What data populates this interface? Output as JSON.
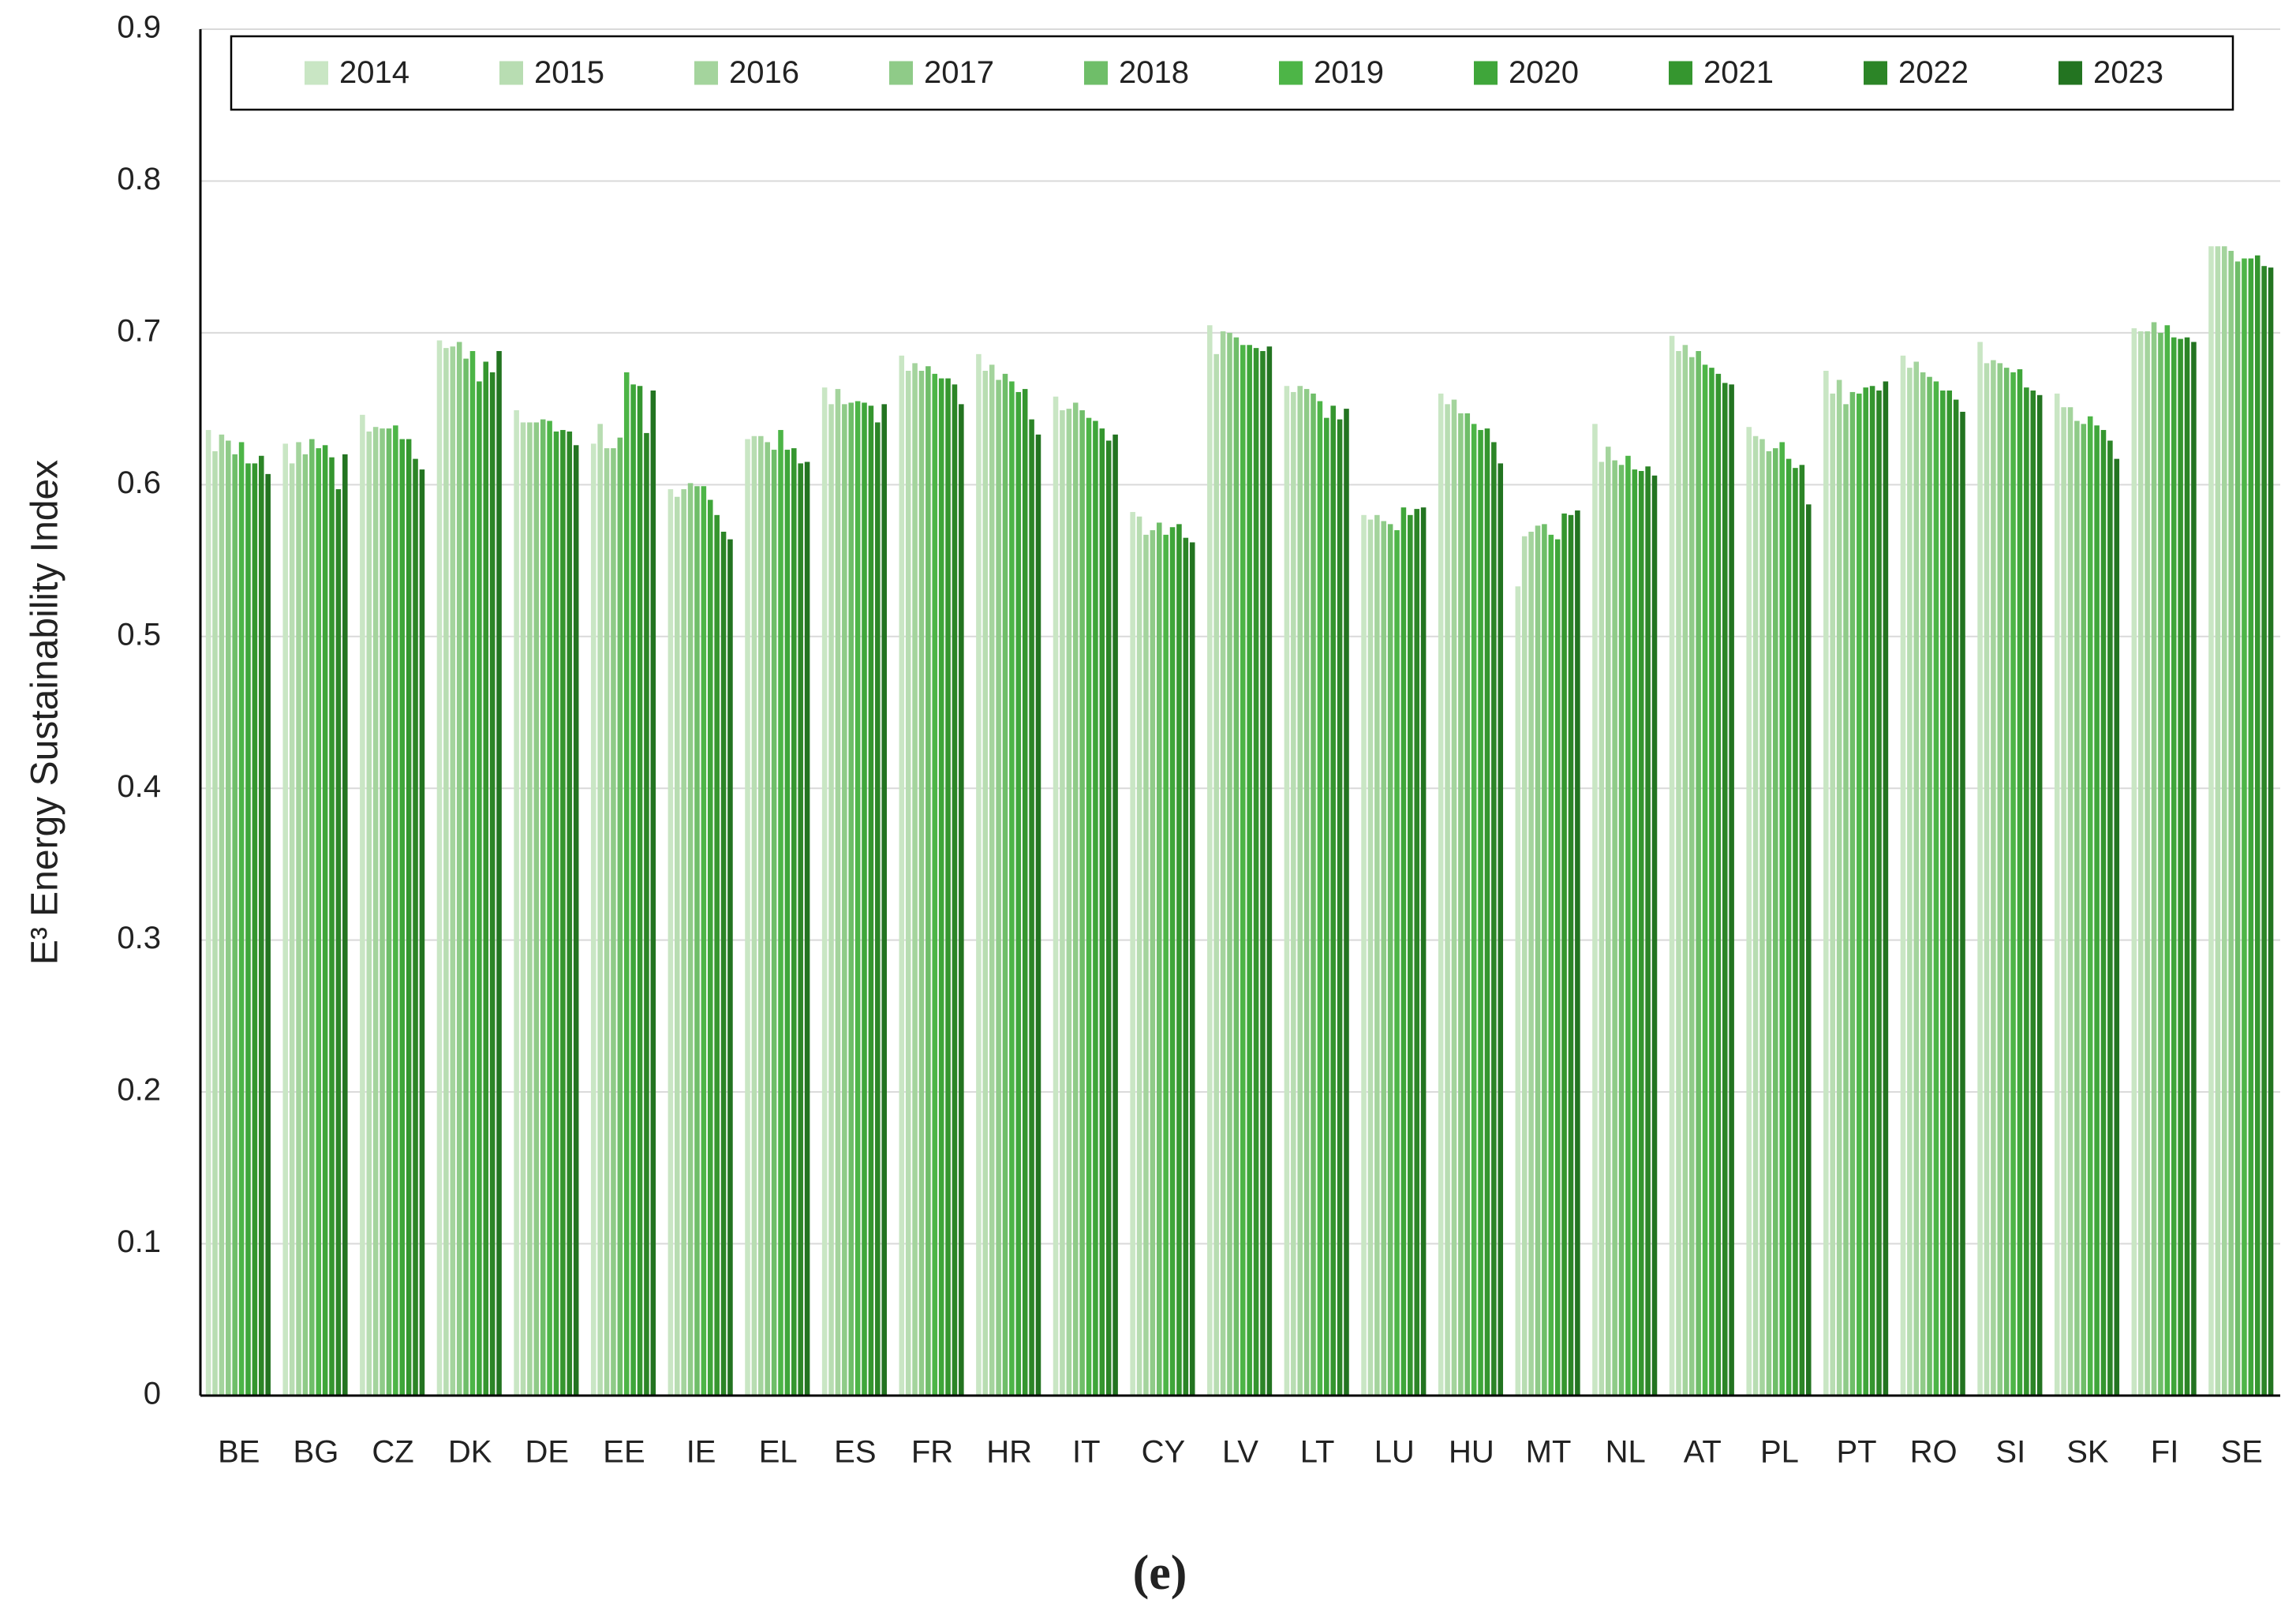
{
  "chart_data": {
    "type": "bar",
    "caption": "(e)",
    "y_label": "E³ Energy Sustainability Index",
    "categories": [
      "BE",
      "BG",
      "CZ",
      "DK",
      "DE",
      "EE",
      "IE",
      "EL",
      "ES",
      "FR",
      "HR",
      "IT",
      "CY",
      "LV",
      "LT",
      "LU",
      "HU",
      "MT",
      "NL",
      "AT",
      "PL",
      "PT",
      "RO",
      "SI",
      "SK",
      "FI",
      "SE"
    ],
    "series": [
      {
        "name": "2014",
        "color": "#c9e6c4",
        "values": [
          0.636,
          0.627,
          0.646,
          0.695,
          0.649,
          0.627,
          0.597,
          0.63,
          0.664,
          0.685,
          0.686,
          0.658,
          0.582,
          0.705,
          0.665,
          0.58,
          0.66,
          0.533,
          0.64,
          0.698,
          0.638,
          0.675,
          0.685,
          0.694,
          0.66,
          0.703,
          0.757
        ]
      },
      {
        "name": "2015",
        "color": "#b8ddb2",
        "values": [
          0.622,
          0.614,
          0.635,
          0.69,
          0.641,
          0.64,
          0.592,
          0.632,
          0.653,
          0.675,
          0.675,
          0.649,
          0.579,
          0.686,
          0.661,
          0.577,
          0.653,
          0.566,
          0.615,
          0.688,
          0.632,
          0.66,
          0.677,
          0.68,
          0.651,
          0.701,
          0.757
        ]
      },
      {
        "name": "2016",
        "color": "#a4d49d",
        "values": [
          0.633,
          0.628,
          0.638,
          0.691,
          0.641,
          0.624,
          0.597,
          0.632,
          0.663,
          0.68,
          0.679,
          0.65,
          0.567,
          0.701,
          0.665,
          0.58,
          0.656,
          0.569,
          0.625,
          0.692,
          0.63,
          0.669,
          0.681,
          0.682,
          0.651,
          0.701,
          0.757
        ]
      },
      {
        "name": "2017",
        "color": "#8fcb88",
        "values": [
          0.629,
          0.62,
          0.637,
          0.694,
          0.641,
          0.624,
          0.601,
          0.628,
          0.653,
          0.675,
          0.669,
          0.654,
          0.57,
          0.7,
          0.663,
          0.576,
          0.647,
          0.573,
          0.616,
          0.684,
          0.622,
          0.653,
          0.674,
          0.68,
          0.642,
          0.707,
          0.754
        ]
      },
      {
        "name": "2018",
        "color": "#6fbe69",
        "values": [
          0.62,
          0.63,
          0.637,
          0.683,
          0.643,
          0.631,
          0.599,
          0.623,
          0.654,
          0.678,
          0.673,
          0.649,
          0.575,
          0.697,
          0.66,
          0.574,
          0.647,
          0.574,
          0.613,
          0.688,
          0.624,
          0.661,
          0.671,
          0.677,
          0.64,
          0.7,
          0.747
        ]
      },
      {
        "name": "2019",
        "color": "#4db547",
        "values": [
          0.628,
          0.624,
          0.639,
          0.688,
          0.642,
          0.674,
          0.599,
          0.636,
          0.655,
          0.673,
          0.668,
          0.644,
          0.567,
          0.692,
          0.655,
          0.57,
          0.64,
          0.567,
          0.619,
          0.679,
          0.628,
          0.66,
          0.668,
          0.674,
          0.645,
          0.705,
          0.749
        ]
      },
      {
        "name": "2020",
        "color": "#3fa63a",
        "values": [
          0.614,
          0.626,
          0.63,
          0.668,
          0.635,
          0.666,
          0.59,
          0.623,
          0.654,
          0.67,
          0.661,
          0.642,
          0.572,
          0.692,
          0.644,
          0.585,
          0.636,
          0.564,
          0.61,
          0.677,
          0.617,
          0.664,
          0.662,
          0.676,
          0.639,
          0.697,
          0.749
        ]
      },
      {
        "name": "2021",
        "color": "#35962f",
        "values": [
          0.614,
          0.618,
          0.63,
          0.681,
          0.636,
          0.665,
          0.58,
          0.624,
          0.652,
          0.67,
          0.663,
          0.637,
          0.574,
          0.69,
          0.652,
          0.58,
          0.637,
          0.581,
          0.609,
          0.673,
          0.611,
          0.665,
          0.662,
          0.664,
          0.636,
          0.696,
          0.751
        ]
      },
      {
        "name": "2022",
        "color": "#2c8527",
        "values": [
          0.619,
          0.597,
          0.617,
          0.674,
          0.635,
          0.634,
          0.569,
          0.614,
          0.641,
          0.666,
          0.643,
          0.629,
          0.565,
          0.688,
          0.643,
          0.584,
          0.628,
          0.58,
          0.612,
          0.667,
          0.613,
          0.662,
          0.656,
          0.662,
          0.629,
          0.697,
          0.744
        ]
      },
      {
        "name": "2023",
        "color": "#237421",
        "values": [
          0.607,
          0.62,
          0.61,
          0.688,
          0.626,
          0.662,
          0.564,
          0.615,
          0.653,
          0.653,
          0.633,
          0.633,
          0.562,
          0.691,
          0.65,
          0.585,
          0.614,
          0.583,
          0.606,
          0.666,
          0.587,
          0.668,
          0.648,
          0.659,
          0.617,
          0.694,
          0.743
        ]
      }
    ],
    "ylim": [
      0,
      0.9
    ],
    "yticks": [
      0,
      0.1,
      0.2,
      0.3,
      0.4,
      0.5,
      0.6,
      0.7,
      0.8,
      0.9
    ],
    "grid": true,
    "legend_position": "top"
  }
}
